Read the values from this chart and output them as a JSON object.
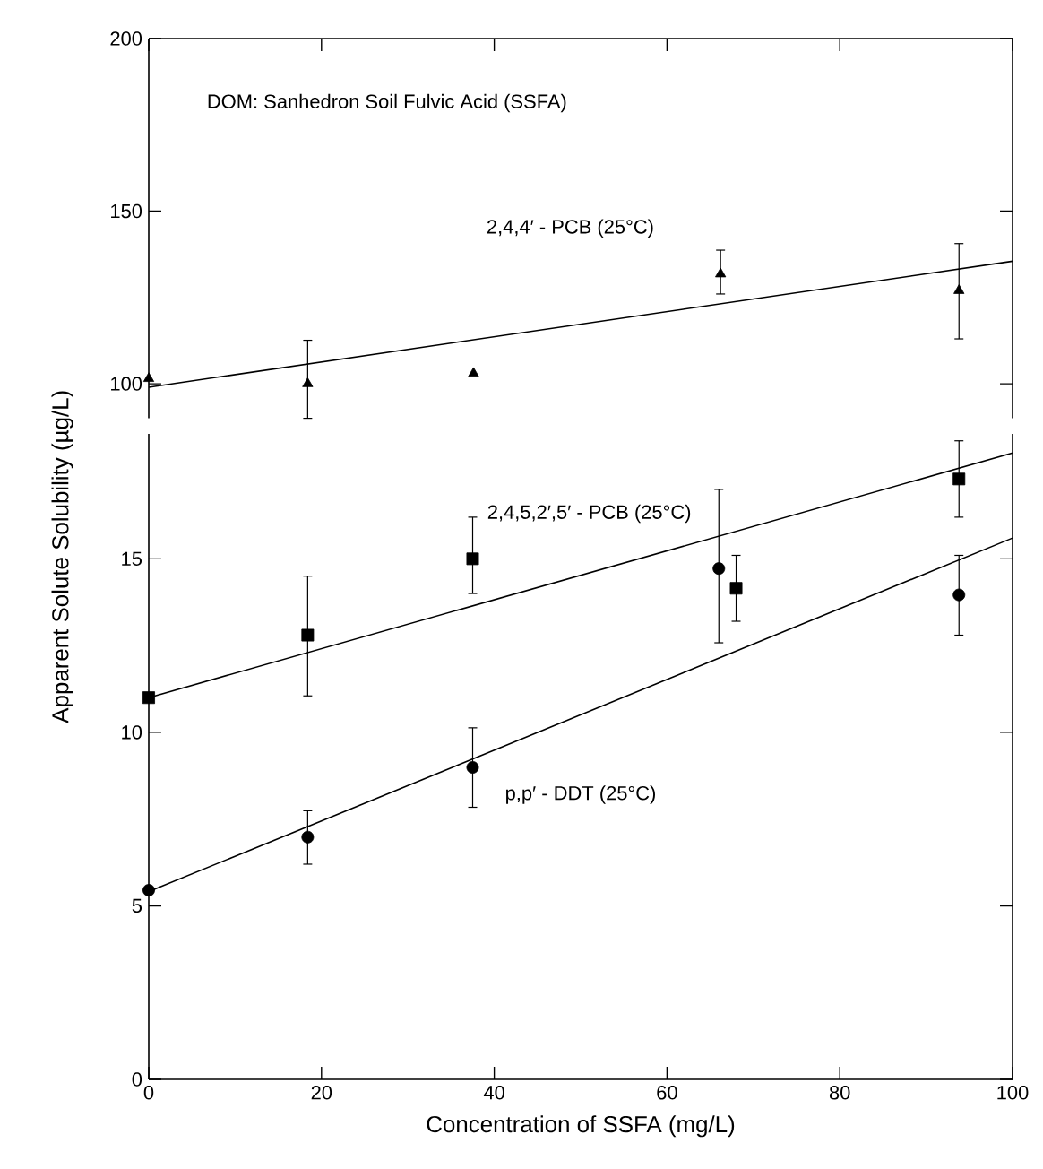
{
  "chart_data": [
    {
      "type": "scatter",
      "annotations": [
        "DOM: Sanhedron Soil Fulvic Acid (SSFA)"
      ],
      "xlim": [
        0,
        100
      ],
      "xticks": [
        0,
        20,
        40,
        60,
        80,
        100
      ],
      "ylim": [
        90,
        200
      ],
      "yticks": [
        100,
        150,
        200
      ],
      "tick_labels": "y",
      "series": [
        {
          "name": "2,4,4′ - PCB (25°C)",
          "color": "#000000",
          "marker": "triangle",
          "x": [
            0,
            18.4,
            37.6,
            66.2,
            93.8
          ],
          "values": [
            101.5,
            100,
            103,
            131.8,
            127
          ],
          "errors": [
            null,
            [
              90,
              112.6
            ],
            null,
            [
              126,
              138.7
            ],
            [
              113,
              140.6
            ]
          ]
        },
        {
          "type": "line",
          "color": "#000000",
          "x": [
            0,
            100
          ],
          "values": [
            99,
            135.5
          ]
        }
      ]
    },
    {
      "type": "scatter",
      "xlabel": "Concentration of SSFA (mg/L)",
      "ylabel": "Apparent Solute Solubility (µg/L)",
      "xlim": [
        0,
        100
      ],
      "xticks": [
        0,
        20,
        40,
        60,
        80,
        100
      ],
      "ylim": [
        0,
        18.6
      ],
      "yticks": [
        0,
        5,
        10,
        15
      ],
      "series": [
        {
          "name": "2,4,5,2′,5′ - PCB (25°C)",
          "color": "#000000",
          "marker": "square",
          "x": [
            0,
            18.4,
            37.5,
            68,
            93.8
          ],
          "values": [
            11,
            12.8,
            15,
            14.15,
            17.3
          ],
          "errors": [
            null,
            [
              11.05,
              14.5
            ],
            [
              14,
              16.2
            ],
            [
              13.2,
              15.1
            ],
            [
              16.2,
              18.4
            ]
          ]
        },
        {
          "name": "p,p′ - DDT (25°C)",
          "color": "#000000",
          "marker": "circle",
          "x": [
            0,
            18.4,
            37.5,
            66,
            93.8
          ],
          "values": [
            5.45,
            6.98,
            8.99,
            14.72,
            13.96
          ],
          "errors": [
            null,
            [
              6.2,
              7.74
            ],
            [
              7.84,
              10.13
            ],
            [
              12.58,
              17
            ],
            [
              12.8,
              15.1
            ]
          ]
        },
        {
          "type": "line",
          "color": "#000000",
          "x": [
            0,
            100
          ],
          "values": [
            11,
            18.05
          ]
        },
        {
          "type": "line",
          "color": "#000000",
          "x": [
            0,
            100
          ],
          "values": [
            5.41,
            15.6
          ]
        }
      ]
    }
  ]
}
